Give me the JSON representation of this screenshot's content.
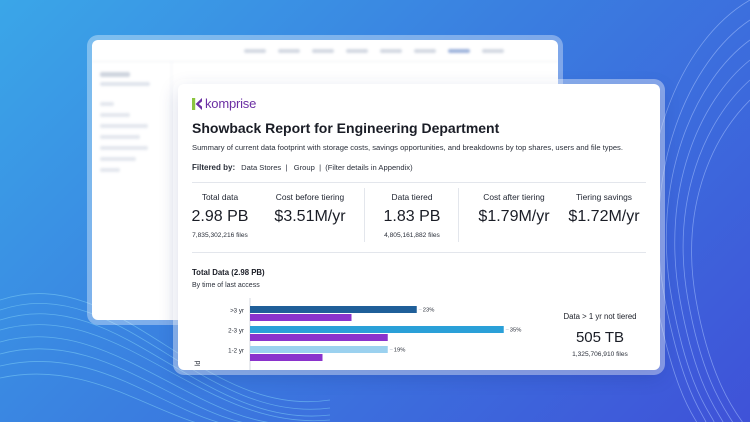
{
  "colors": {
    "accent_dark_blue": "#1f5f99",
    "accent_purple": "#8a33cc",
    "accent_light_blue": "#9bd1ef",
    "accent_cyan": "#2aa0d8",
    "brand_purple": "#6b2fa3"
  },
  "icons": [
    "komprise-logo-icon"
  ],
  "report": {
    "brand": "komprise",
    "title": "Showback Report for Engineering Department",
    "subtitle": "Summary of current data footprint with storage costs, savings opportunities, and breakdowns by top shares, users and file types.",
    "filter": {
      "label": "Filtered by:",
      "items": "Data Stores  |   Group  |  (Filter details in Appendix)"
    },
    "metrics": [
      {
        "label": "Total data",
        "value": "2.98 PB",
        "sub": "7,835,302,216 files"
      },
      {
        "label": "Cost before tiering",
        "value": "$3.51M/yr",
        "sub": ""
      },
      {
        "label": "Data tiered",
        "value": "1.83 PB",
        "sub": "4,805,161,882 files"
      },
      {
        "label": "Cost after tiering",
        "value": "$1.79M/yr",
        "sub": ""
      },
      {
        "label": "Tiering savings",
        "value": "$1.72M/yr",
        "sub": ""
      }
    ],
    "chart_title": "Total Data (2.98 PB)",
    "chart_subtitle": "By time of last access",
    "side_stat": {
      "label": "Data > 1 yr not tiered",
      "value": "505 TB",
      "sub": "1,325,706,910 files"
    }
  },
  "chart_data": {
    "type": "bar",
    "orientation": "horizontal",
    "categories": [
      ">3 yr",
      "2-3 yr",
      "1-2 yr"
    ],
    "series": [
      {
        "values": [
          23,
          35,
          19
        ],
        "data_labels": [
          "23%",
          "35%",
          "19%"
        ],
        "colors": [
          "#1f5f99",
          "#2aa0d8",
          "#9bd1ef"
        ]
      },
      {
        "values": [
          14,
          19,
          10
        ],
        "color": "#8a33cc"
      }
    ],
    "xlim": [
      0,
      40
    ]
  }
}
